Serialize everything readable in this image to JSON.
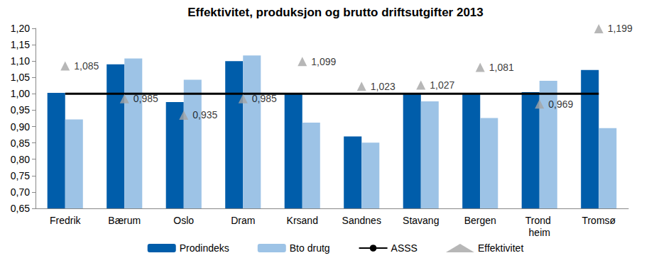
{
  "chart_data": {
    "type": "bar",
    "title": "Effektivitet, produksjon og brutto driftsutgifter 2013",
    "categories": [
      "Fredrik",
      "Bærum",
      "Oslo",
      "Dram",
      "Krsand",
      "Sandnes",
      "Stavang",
      "Bergen",
      "Trond heim",
      "Tromsø"
    ],
    "series": [
      {
        "name": "Prodindeks",
        "type": "bar",
        "color": "#005DAA",
        "values": [
          1.003,
          1.09,
          0.975,
          1.1,
          1.0,
          0.87,
          1.0,
          1.0,
          1.005,
          1.073
        ]
      },
      {
        "name": "Bto drutg",
        "type": "bar",
        "color": "#9DC3E6",
        "values": [
          0.922,
          1.108,
          1.043,
          1.117,
          0.912,
          0.851,
          0.977,
          0.926,
          1.04,
          0.895
        ]
      },
      {
        "name": "ASSS",
        "type": "line",
        "color": "#000000",
        "line_style": "solid",
        "values": [
          1.0,
          1.0,
          1.0,
          1.0,
          1.0,
          1.0,
          1.0,
          1.0,
          1.0,
          1.0
        ]
      },
      {
        "name": "Effektivitet",
        "type": "scatter",
        "color": "#A5A5A5",
        "marker": "triangle",
        "data_labels": true,
        "values": [
          1.085,
          0.985,
          0.935,
          0.985,
          1.099,
          1.023,
          1.027,
          1.081,
          0.969,
          1.199
        ],
        "value_labels": [
          "1,085",
          "0,985",
          "0,935",
          "0,985",
          "1,099",
          "1,023",
          "1,027",
          "1,081",
          "0,969",
          "1,199"
        ]
      }
    ],
    "ylim": [
      0.65,
      1.2
    ],
    "yticks": [
      {
        "value": 0.65,
        "label": "0,65"
      },
      {
        "value": 0.7,
        "label": "0,70"
      },
      {
        "value": 0.75,
        "label": "0,75"
      },
      {
        "value": 0.8,
        "label": "0,80"
      },
      {
        "value": 0.85,
        "label": "0,85"
      },
      {
        "value": 0.9,
        "label": "0,90"
      },
      {
        "value": 0.95,
        "label": "0,95"
      },
      {
        "value": 1.0,
        "label": "1,00"
      },
      {
        "value": 1.05,
        "label": "1,05"
      },
      {
        "value": 1.1,
        "label": "1,10"
      },
      {
        "value": 1.15,
        "label": "1,15"
      },
      {
        "value": 1.2,
        "label": "1,20"
      }
    ],
    "grid": false,
    "legend": "bottom"
  }
}
